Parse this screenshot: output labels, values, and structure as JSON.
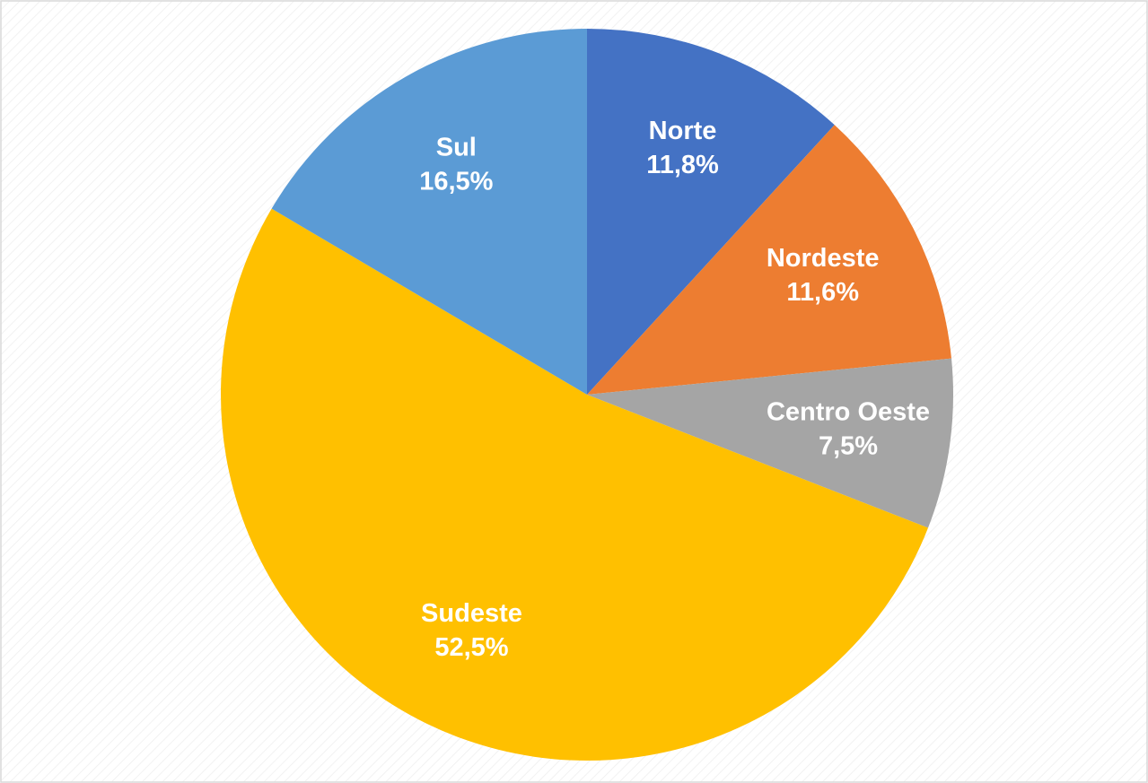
{
  "chart_data": {
    "type": "pie",
    "categories": [
      "Norte",
      "Nordeste",
      "Centro Oeste",
      "Sudeste",
      "Sul"
    ],
    "values": [
      11.8,
      11.6,
      7.5,
      52.5,
      16.5
    ],
    "value_labels": [
      "11,8%",
      "11,6%",
      "7,5%",
      "52,5%",
      "16,5%"
    ],
    "colors": [
      "#4472c4",
      "#ed7d31",
      "#a5a5a5",
      "#ffc000",
      "#5b9bd5"
    ]
  }
}
